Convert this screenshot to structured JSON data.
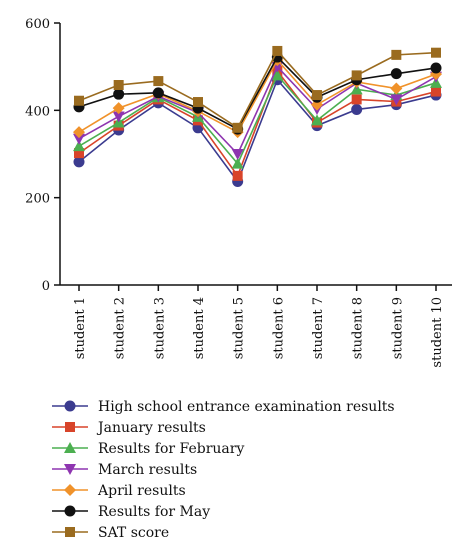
{
  "chart_data": {
    "type": "line",
    "title": "",
    "xlabel": "",
    "ylabel": "",
    "ylim": [
      0,
      600
    ],
    "yticks": [
      0,
      200,
      400,
      600
    ],
    "grid": false,
    "legend_position": "bottom",
    "categories": [
      "student 1",
      "student 2",
      "student 3",
      "student 4",
      "student 5",
      "student 6",
      "student 7",
      "student 8",
      "student 9",
      "student 10"
    ],
    "series": [
      {
        "name": "High school entrance examination results",
        "color": "#3b3b8f",
        "marker": "circle",
        "values": [
          282,
          355,
          417,
          360,
          237,
          470,
          365,
          402,
          413,
          435
        ]
      },
      {
        "name": "January results",
        "color": "#d8442a",
        "marker": "square",
        "values": [
          302,
          365,
          425,
          377,
          250,
          490,
          372,
          425,
          420,
          443
        ]
      },
      {
        "name": "Results for February",
        "color": "#4caf50",
        "marker": "triangle-up",
        "values": [
          318,
          372,
          430,
          385,
          278,
          480,
          377,
          448,
          435,
          463
        ]
      },
      {
        "name": "March results",
        "color": "#8e35b0",
        "marker": "triangle-down",
        "values": [
          335,
          386,
          432,
          395,
          300,
          500,
          403,
          462,
          425,
          477
        ]
      },
      {
        "name": "April results",
        "color": "#f0922a",
        "marker": "diamond",
        "values": [
          350,
          405,
          438,
          398,
          350,
          515,
          413,
          465,
          450,
          483
        ]
      },
      {
        "name": "Results for May",
        "color": "#111111",
        "marker": "circle",
        "values": [
          408,
          437,
          440,
          405,
          357,
          522,
          430,
          470,
          484,
          497
        ]
      },
      {
        "name": "SAT score",
        "color": "#9a6b1f",
        "marker": "square",
        "values": [
          422,
          458,
          467,
          419,
          360,
          536,
          435,
          480,
          527,
          532
        ]
      }
    ]
  }
}
